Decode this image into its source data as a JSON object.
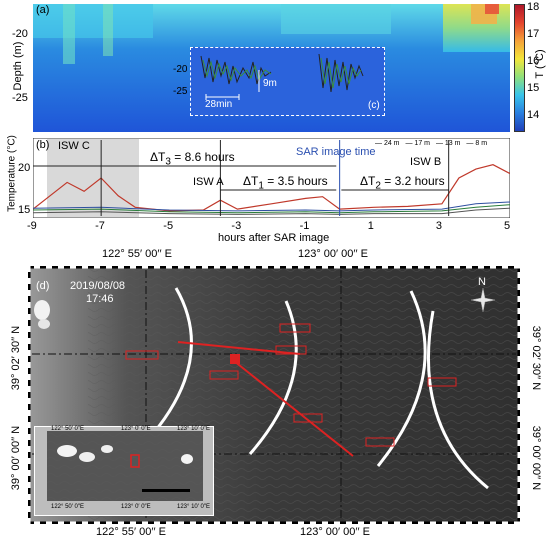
{
  "panel_a": {
    "letter": "(a)",
    "ylabel": "Depth (m)",
    "yticks": [
      "-20",
      "-25"
    ],
    "colorbar": {
      "label": "T (°C)",
      "ticks": [
        "18",
        "17",
        "16",
        "15",
        "14"
      ]
    },
    "inset": {
      "letter": "(c)",
      "yticks": [
        "-20",
        "-25"
      ],
      "scale_time": "28min",
      "scale_depth": "9m"
    }
  },
  "panel_b": {
    "letter": "(b)",
    "ylabel": "Temperature (°C)",
    "yticks": [
      "20",
      "15"
    ],
    "xlabel": "hours after SAR image",
    "xticks": [
      "-9",
      "-7",
      "-5",
      "-3",
      "-1",
      "1",
      "3",
      "5"
    ],
    "legend": [
      "24 m",
      "17 m",
      "13 m",
      "8 m"
    ],
    "annotations": {
      "isw_c": "ISW C",
      "isw_a": "ISW A",
      "isw_b": "ISW B",
      "sar_time": "SAR image time",
      "dt3_prefix": "ΔT",
      "dt3_sub": "3",
      "dt3_val": " = 8.6 hours",
      "dt1_prefix": "ΔT",
      "dt1_sub": "1",
      "dt1_val": " = 3.5 hours",
      "dt2_prefix": "ΔT",
      "dt2_sub": "2",
      "dt2_val": " = 3.2 hours"
    }
  },
  "panel_d": {
    "letter": "(d)",
    "date": "2019/08/08",
    "time": "17:46",
    "north": "N",
    "top_lon": [
      "122° 55′ 00′′ E",
      "123° 00′ 00′′ E"
    ],
    "bottom_lon": [
      "122° 55′ 00′′ E",
      "123° 00′ 00′′ E"
    ],
    "left_lat": [
      "39° 02′ 30′′ N",
      "39° 00′ 00′′ N"
    ],
    "right_lat": [
      "39° 02′ 30′′ N",
      "39° 00′ 00′′ N"
    ],
    "inset_lon_ticks": [
      "122° 50′ 0″E",
      "123° 0′ 0″E",
      "123° 10′ 0″E"
    ]
  },
  "colors": {
    "red_series": "#c0392b",
    "blue_series": "#2e4fa0",
    "green_series": "#2a7d3a",
    "sar_line": "#2a4fb0",
    "sar_dark": "#2b2b2b"
  },
  "chart_data": {
    "type": "line",
    "title": "",
    "xlabel": "hours after SAR image",
    "ylabel": "Temperature (°C)",
    "xlim": [
      -9,
      5
    ],
    "ylim": [
      14,
      23
    ],
    "series": [
      {
        "name": "8 m",
        "x": [
          -9,
          -8.5,
          -8,
          -7.5,
          -7,
          -6.5,
          -6,
          -5,
          -4,
          -3.5,
          -3,
          -2,
          -1,
          -0.5,
          0,
          1,
          2,
          3,
          3.5,
          4,
          4.5,
          5
        ],
        "values": [
          15.0,
          16.5,
          18.0,
          17.0,
          18.5,
          16.5,
          15.2,
          14.8,
          14.9,
          16.0,
          15.0,
          15.6,
          16.2,
          16.4,
          15.0,
          15.2,
          15.3,
          15.6,
          18.5,
          19.5,
          20.0,
          19.0
        ]
      },
      {
        "name": "13 m",
        "x": [
          -9,
          -7,
          -5,
          -3,
          -1,
          0,
          1,
          3,
          4,
          5
        ],
        "values": [
          15.1,
          15.2,
          14.9,
          14.8,
          14.9,
          14.8,
          14.9,
          15.0,
          15.6,
          15.8
        ]
      },
      {
        "name": "17 m",
        "x": [
          -9,
          -7,
          -5,
          -3,
          -1,
          0,
          1,
          3,
          4,
          5
        ],
        "values": [
          14.9,
          15.0,
          14.7,
          14.6,
          14.7,
          14.6,
          14.7,
          14.8,
          15.2,
          15.5
        ]
      },
      {
        "name": "24 m",
        "x": [
          -9,
          -7,
          -5,
          -3,
          -1,
          0,
          1,
          3,
          4,
          5
        ],
        "values": [
          14.6,
          14.7,
          14.5,
          14.4,
          14.5,
          14.4,
          14.5,
          14.5,
          14.9,
          15.1
        ]
      }
    ],
    "events": [
      {
        "name": "ISW C",
        "x": -7
      },
      {
        "name": "ISW A",
        "x": -3.5
      },
      {
        "name": "SAR image time",
        "x": 0
      },
      {
        "name": "ISW B",
        "x": 3.2
      }
    ]
  }
}
